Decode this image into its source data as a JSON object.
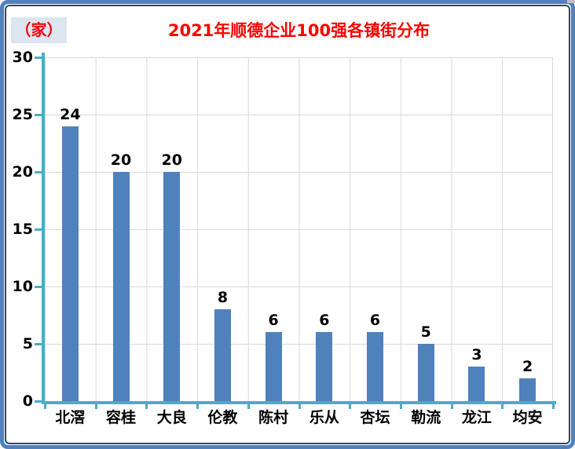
{
  "title": {
    "text": "2021年顺德企业100强各镇街分布"
  },
  "units_label": {
    "text": "（家）"
  },
  "chart_data": {
    "type": "bar",
    "title": "2021年顺德企业100强各镇街分布",
    "unit_label": "（家）",
    "categories": [
      "北滘",
      "容桂",
      "大良",
      "伦教",
      "陈村",
      "乐从",
      "杏坛",
      "勒流",
      "龙江",
      "均安"
    ],
    "values": [
      24,
      20,
      20,
      8,
      6,
      6,
      6,
      5,
      3,
      2
    ],
    "data_labels": [
      24,
      20,
      20,
      8,
      6,
      6,
      6,
      5,
      3,
      2
    ],
    "ylim": [
      0,
      30
    ],
    "y_ticks": [
      30,
      25,
      20,
      15,
      10,
      5,
      0
    ],
    "grid": true,
    "legend_position": "none",
    "colors": {
      "bar": "#4f81bd",
      "axis": "#4bacc6",
      "gridline": "#d9d9d9",
      "title_text": "#ff0000",
      "units_text": "#ff0000",
      "units_background": "#dce6f1",
      "frame_border": "#4f81bd",
      "inner_border": "#1d4a7d",
      "label_text": "#000000"
    }
  }
}
